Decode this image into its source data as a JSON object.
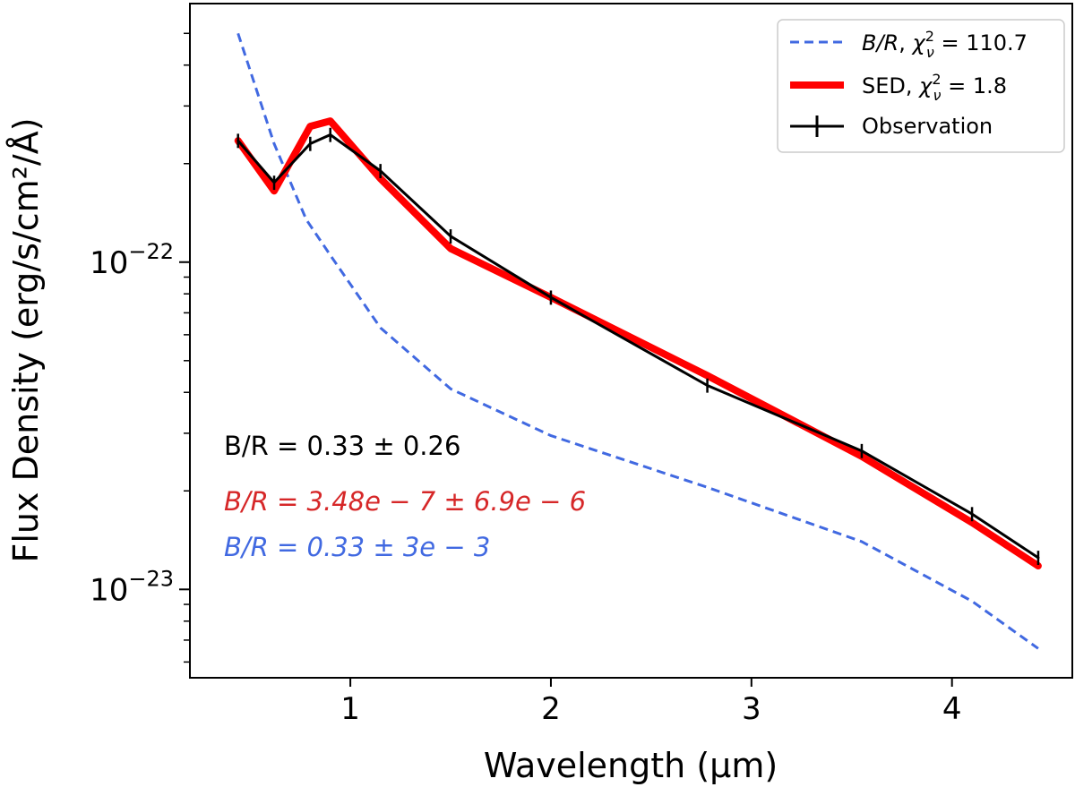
{
  "chart_data": {
    "type": "line",
    "xlabel": "Wavelength (μm)",
    "ylabel": "Flux Density (erg/s/cm²/Å)",
    "xlim": [
      0.2,
      4.6
    ],
    "ylim_log10": [
      -23.27,
      -21.21
    ],
    "yscale": "log",
    "x_ticks": [
      1,
      2,
      3,
      4
    ],
    "x_tick_labels": [
      "1",
      "2",
      "3",
      "4"
    ],
    "y_major_ticks": [
      -22,
      -23
    ],
    "y_major_tick_labels": [
      {
        "base": "10",
        "exp": "−22"
      },
      {
        "base": "10",
        "exp": "−23"
      }
    ],
    "y_minor_ticks": [
      5e-24,
      6e-24,
      7e-24,
      8e-24,
      9e-24,
      2e-23,
      3e-23,
      4e-23,
      5e-23,
      6e-23,
      7e-23,
      8e-23,
      9e-23,
      2e-22,
      3e-22,
      4e-22,
      5e-22
    ],
    "series": [
      {
        "name": "B/R",
        "legend": {
          "prefix": "B/R",
          "chi": "χ",
          "sup": "2",
          "sub": "ν",
          "rest": " = 110.7"
        },
        "color": "#4169e1",
        "style": "dashed",
        "x": [
          0.44,
          0.62,
          0.78,
          0.9,
          1.15,
          1.5,
          2.0,
          2.78,
          3.55,
          4.1,
          4.43
        ],
        "y": [
          5e-22,
          2.3e-22,
          1.35e-22,
          1.05e-22,
          6.3e-23,
          4.1e-23,
          2.95e-23,
          2.05e-23,
          1.4e-23,
          9.2e-24,
          6.6e-24
        ]
      },
      {
        "name": "SED",
        "legend": {
          "prefix": "SED",
          "chi": "χ",
          "sup": "2",
          "sub": "ν",
          "rest": " = 1.8"
        },
        "color": "#ff0000",
        "style": "thick",
        "x": [
          0.44,
          0.62,
          0.8,
          0.9,
          1.15,
          1.5,
          2.0,
          2.78,
          3.55,
          4.1,
          4.43
        ],
        "y": [
          2.35e-22,
          1.65e-22,
          2.6e-22,
          2.7e-22,
          1.8e-22,
          1.1e-22,
          7.8e-23,
          4.5e-23,
          2.55e-23,
          1.6e-23,
          1.18e-23
        ]
      },
      {
        "name": "Observation",
        "legend": {
          "prefix": "Observation"
        },
        "color": "#000000",
        "style": "errorbar",
        "x": [
          0.44,
          0.62,
          0.8,
          0.9,
          1.15,
          1.5,
          2.0,
          2.78,
          3.55,
          4.1,
          4.43
        ],
        "y": [
          2.35e-22,
          1.75e-22,
          2.3e-22,
          2.45e-22,
          1.9e-22,
          1.2e-22,
          7.8e-23,
          4.2e-23,
          2.65e-23,
          1.7e-23,
          1.25e-23
        ],
        "yerr_frac": 0.05
      }
    ],
    "annotations": [
      {
        "text": "B/R = 0.33 ± 0.26",
        "color": "#000000",
        "italic": false
      },
      {
        "text": "B/R = 3.48e − 7 ± 6.9e − 6",
        "color": "#d62728",
        "italic": true
      },
      {
        "text": "B/R = 0.33 ± 3e − 3",
        "color": "#4169e1",
        "italic": true
      }
    ],
    "legend_position": "top-right"
  }
}
